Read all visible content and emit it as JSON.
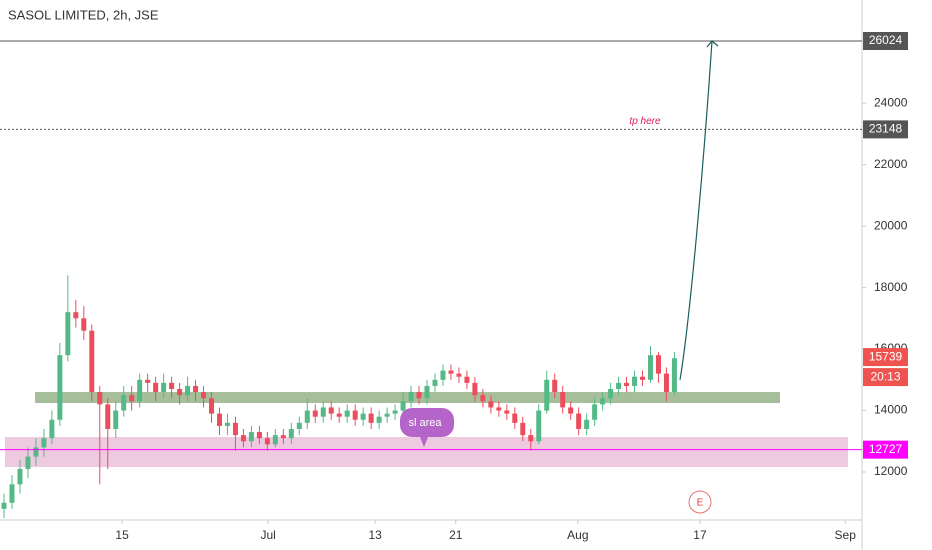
{
  "chart_data": {
    "type": "candlestick",
    "title": "SASOL LIMITED, 2h, JSE",
    "up_color": "#53b987",
    "down_color": "#eb4d5c",
    "open": [
      10800,
      11000,
      11600,
      12100,
      12500,
      12800,
      13100,
      13700,
      15800,
      17200,
      17000,
      16600,
      14600,
      14200,
      13400,
      14000,
      14500,
      14300,
      15000,
      14900,
      14600,
      14900,
      14700,
      14500,
      14800,
      14600,
      14400,
      13900,
      13500,
      13600,
      13200,
      13000,
      13300,
      13100,
      12900,
      13200,
      13100,
      13400,
      13600,
      14000,
      13800,
      14100,
      13900,
      13800,
      14000,
      13700,
      13900,
      13600,
      13800,
      13900,
      14000,
      14300,
      14600,
      14400,
      14800,
      15000,
      15300,
      15200,
      15100,
      14900,
      14500,
      14300,
      14100,
      14000,
      13900,
      13600,
      13200,
      13000,
      14000,
      15000,
      14600,
      14100,
      13900,
      13400,
      13700,
      14200,
      14400,
      14700,
      14900,
      14800,
      15100,
      15000,
      15800,
      15200,
      14600
    ],
    "high": [
      11300,
      11900,
      12400,
      12800,
      13100,
      13400,
      14000,
      16200,
      18400,
      17600,
      17400,
      16800,
      14800,
      14400,
      14300,
      14800,
      14800,
      15200,
      15200,
      15100,
      15200,
      15100,
      14900,
      15100,
      15000,
      14800,
      14600,
      14100,
      13900,
      13800,
      13400,
      13500,
      13500,
      13300,
      13400,
      13400,
      13600,
      13800,
      14400,
      14200,
      14300,
      14300,
      14100,
      14200,
      14200,
      14100,
      14100,
      14000,
      14100,
      14200,
      14600,
      14800,
      14800,
      15000,
      15200,
      15500,
      15500,
      15400,
      15300,
      15100,
      14700,
      14500,
      14300,
      14200,
      14100,
      13800,
      13400,
      14200,
      15300,
      15200,
      14800,
      14300,
      14100,
      13900,
      14400,
      14600,
      14900,
      15100,
      15100,
      15300,
      15300,
      16100,
      15900,
      15400,
      15900
    ],
    "low": [
      10500,
      10800,
      11300,
      11800,
      12200,
      12500,
      12900,
      13500,
      15600,
      16700,
      16300,
      14300,
      11600,
      12100,
      13100,
      13800,
      14000,
      14100,
      14600,
      14300,
      14400,
      14400,
      14200,
      14300,
      14300,
      14100,
      13600,
      13200,
      13200,
      12700,
      12800,
      12800,
      12900,
      12700,
      12800,
      12900,
      12900,
      13200,
      13400,
      13600,
      13600,
      13700,
      13600,
      13600,
      13500,
      13500,
      13400,
      13400,
      13600,
      13700,
      13800,
      14100,
      14200,
      14200,
      14600,
      14800,
      15000,
      14900,
      14700,
      14300,
      14100,
      13900,
      13800,
      13700,
      13400,
      13000,
      12700,
      12900,
      13900,
      14400,
      13900,
      13700,
      13200,
      13200,
      13500,
      14000,
      14200,
      14500,
      14600,
      14600,
      14800,
      14900,
      14900,
      14300,
      14500
    ],
    "close": [
      11000,
      11600,
      12100,
      12500,
      12800,
      13100,
      13700,
      15800,
      17200,
      17000,
      16600,
      14600,
      14200,
      13400,
      14000,
      14500,
      14300,
      15000,
      14900,
      14600,
      14900,
      14700,
      14500,
      14800,
      14600,
      14400,
      13900,
      13500,
      13600,
      13200,
      13000,
      13300,
      13100,
      12900,
      13200,
      13100,
      13400,
      13600,
      14000,
      13800,
      14100,
      13900,
      13800,
      14000,
      13700,
      13900,
      13600,
      13800,
      13900,
      14000,
      14300,
      14600,
      14400,
      14800,
      15000,
      15300,
      15200,
      15100,
      14900,
      14500,
      14300,
      14100,
      14000,
      13900,
      13600,
      13200,
      13000,
      14000,
      15000,
      14600,
      14100,
      13900,
      13400,
      13700,
      14200,
      14400,
      14700,
      14900,
      14800,
      15100,
      15000,
      15800,
      15200,
      14600,
      15700
    ],
    "xlim": [
      0,
      108
    ],
    "ylim": [
      10438,
      27358
    ],
    "xticks": [
      {
        "value": 15.3,
        "label": "15"
      },
      {
        "value": 33.6,
        "label": "Jul"
      },
      {
        "value": 47.0,
        "label": "13"
      },
      {
        "value": 57.1,
        "label": "21"
      },
      {
        "value": 72.4,
        "label": "Aug"
      },
      {
        "value": 87.7,
        "label": "17"
      },
      {
        "value": 105.9,
        "label": "Sep"
      }
    ],
    "yticks": [
      12000,
      14000,
      16000,
      18000,
      20000,
      22000,
      24000
    ],
    "zones": [
      {
        "low": 14244,
        "high": 14602,
        "color": "#8aa878"
      },
      {
        "low": 12161,
        "high": 13137,
        "color": "#e6b4d2"
      }
    ],
    "levels": [
      {
        "value": 26024,
        "color": "#555555",
        "line": "solid"
      },
      {
        "value": 23148,
        "color": "#555555",
        "line": "dotted"
      },
      {
        "value": 15739,
        "color": "#ef5350",
        "line": "none"
      },
      {
        "value": 12727,
        "color": "#ff00ff",
        "line": "solid"
      }
    ],
    "countdown": "20:13",
    "arrow": {
      "from": 15000,
      "to": 26024
    },
    "annotations": {
      "tp": "tp here",
      "sl": "sl area",
      "event": "E"
    }
  }
}
